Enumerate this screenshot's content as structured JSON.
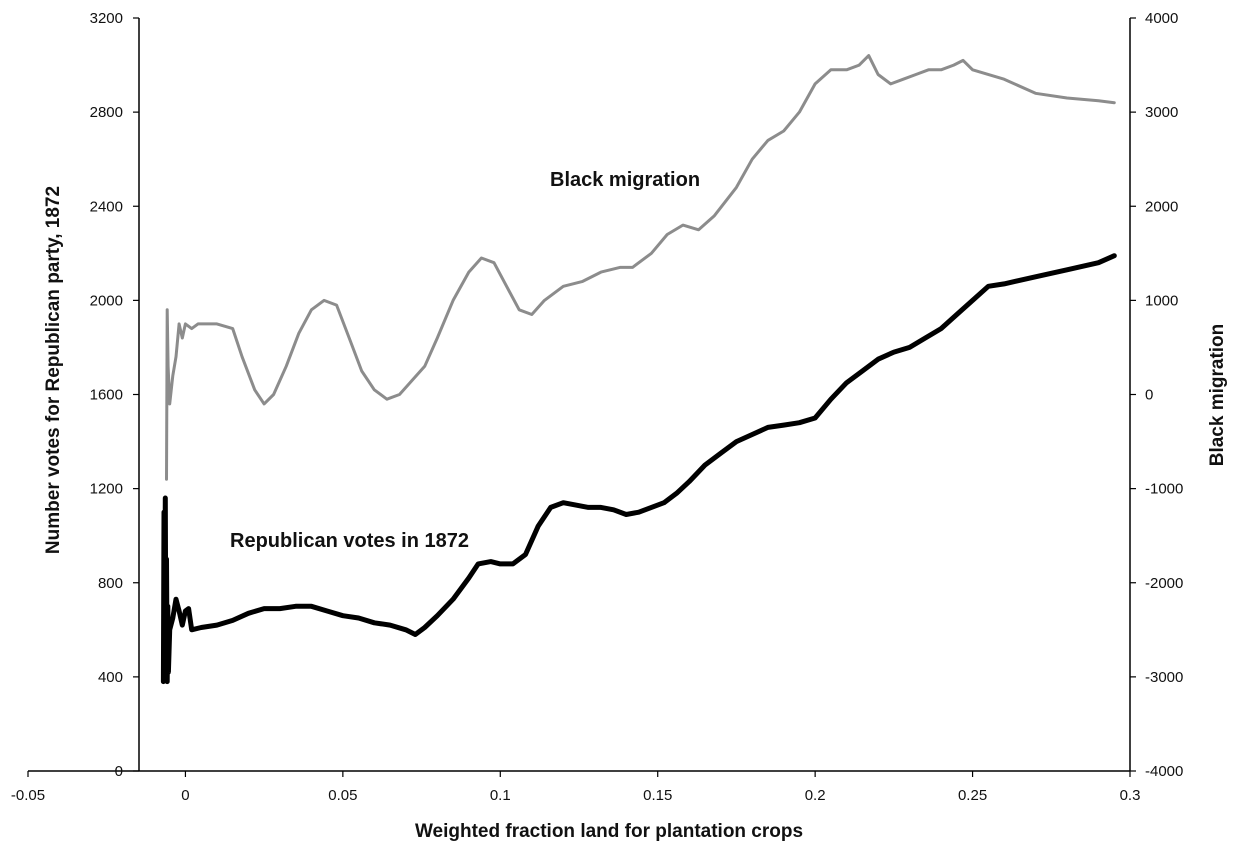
{
  "chart_data": {
    "type": "line",
    "title": "",
    "xlabel": "Weighted fraction land for plantation crops",
    "ylabel": "Number votes for Republican party, 1872",
    "y2label": "Black migration",
    "xlim": [
      -0.05,
      0.3
    ],
    "ylim": [
      0,
      3200
    ],
    "y2lim": [
      -4000,
      4000
    ],
    "x_ticks": [
      "-0.05",
      "0",
      "0.05",
      "0.1",
      "0.15",
      "0.2",
      "0.25",
      "0.3"
    ],
    "y_ticks": [
      "0",
      "400",
      "800",
      "1200",
      "1600",
      "2000",
      "2400",
      "2800",
      "3200"
    ],
    "y2_ticks": [
      "-4000",
      "-3000",
      "-2000",
      "-1000",
      "0",
      "1000",
      "2000",
      "3000",
      "4000"
    ],
    "grid": false,
    "legend": "none",
    "series": [
      {
        "name": "Black migration",
        "axis": "right",
        "color": "#8c8c8c",
        "x": [
          -0.006,
          -0.0058,
          -0.0055,
          -0.005,
          -0.004,
          -0.003,
          -0.002,
          -0.001,
          0.0,
          0.002,
          0.004,
          0.006,
          0.01,
          0.015,
          0.018,
          0.022,
          0.025,
          0.028,
          0.032,
          0.036,
          0.04,
          0.044,
          0.048,
          0.052,
          0.056,
          0.06,
          0.064,
          0.068,
          0.072,
          0.076,
          0.08,
          0.085,
          0.09,
          0.094,
          0.098,
          0.102,
          0.106,
          0.11,
          0.114,
          0.12,
          0.126,
          0.132,
          0.138,
          0.142,
          0.148,
          0.153,
          0.158,
          0.163,
          0.168,
          0.175,
          0.18,
          0.185,
          0.19,
          0.195,
          0.2,
          0.205,
          0.21,
          0.214,
          0.217,
          0.22,
          0.224,
          0.228,
          0.232,
          0.236,
          0.24,
          0.244,
          0.247,
          0.25,
          0.26,
          0.27,
          0.28,
          0.29,
          0.295
        ],
        "values": [
          -900,
          900,
          300,
          -100,
          200,
          400,
          750,
          600,
          750,
          700,
          750,
          750,
          750,
          700,
          400,
          50,
          -100,
          0,
          300,
          650,
          900,
          1000,
          950,
          600,
          250,
          50,
          -50,
          0,
          150,
          300,
          600,
          1000,
          1300,
          1450,
          1400,
          1150,
          900,
          850,
          1000,
          1150,
          1200,
          1300,
          1350,
          1350,
          1500,
          1700,
          1800,
          1750,
          1900,
          2200,
          2500,
          2700,
          2800,
          3000,
          3300,
          3450,
          3450,
          3500,
          3600,
          3400,
          3300,
          3350,
          3400,
          3450,
          3450,
          3500,
          3550,
          3450,
          3350,
          3200,
          3150,
          3120,
          3100
        ]
      },
      {
        "name": "Republican votes in 1872",
        "axis": "left",
        "color": "#000000",
        "x": [
          -0.007,
          -0.0068,
          -0.0066,
          -0.0064,
          -0.0062,
          -0.006,
          -0.0058,
          -0.0056,
          -0.0054,
          -0.005,
          -0.004,
          -0.003,
          -0.002,
          -0.001,
          0.0,
          0.001,
          0.002,
          0.005,
          0.01,
          0.015,
          0.02,
          0.025,
          0.03,
          0.035,
          0.04,
          0.045,
          0.05,
          0.055,
          0.06,
          0.065,
          0.07,
          0.073,
          0.076,
          0.08,
          0.085,
          0.09,
          0.093,
          0.097,
          0.1,
          0.104,
          0.108,
          0.112,
          0.116,
          0.12,
          0.124,
          0.128,
          0.132,
          0.136,
          0.14,
          0.144,
          0.148,
          0.152,
          0.156,
          0.16,
          0.165,
          0.17,
          0.175,
          0.18,
          0.185,
          0.19,
          0.195,
          0.2,
          0.205,
          0.21,
          0.215,
          0.22,
          0.225,
          0.23,
          0.235,
          0.24,
          0.245,
          0.25,
          0.255,
          0.26,
          0.27,
          0.28,
          0.29,
          0.295
        ],
        "values": [
          380,
          1100,
          420,
          1160,
          400,
          900,
          380,
          700,
          420,
          600,
          650,
          730,
          680,
          620,
          680,
          690,
          600,
          610,
          620,
          640,
          670,
          690,
          690,
          700,
          700,
          680,
          660,
          650,
          630,
          620,
          600,
          580,
          610,
          660,
          730,
          820,
          880,
          890,
          880,
          880,
          920,
          1040,
          1120,
          1140,
          1130,
          1120,
          1120,
          1110,
          1090,
          1100,
          1120,
          1140,
          1180,
          1230,
          1300,
          1350,
          1400,
          1430,
          1460,
          1470,
          1480,
          1500,
          1580,
          1650,
          1700,
          1750,
          1780,
          1800,
          1840,
          1880,
          1940,
          2000,
          2060,
          2070,
          2100,
          2130,
          2160,
          2190
        ]
      }
    ],
    "annotations": [
      "Black migration",
      "Republican votes in 1872"
    ]
  }
}
